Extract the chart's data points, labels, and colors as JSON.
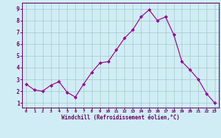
{
  "x": [
    0,
    1,
    2,
    3,
    4,
    5,
    6,
    7,
    8,
    9,
    10,
    11,
    12,
    13,
    14,
    15,
    16,
    17,
    18,
    19,
    20,
    21,
    22,
    23
  ],
  "y": [
    2.6,
    2.1,
    2.0,
    2.5,
    2.8,
    1.9,
    1.5,
    2.6,
    3.6,
    4.4,
    4.5,
    5.5,
    6.5,
    7.2,
    8.3,
    8.9,
    8.0,
    8.3,
    6.8,
    4.5,
    3.8,
    3.0,
    1.8,
    1.0
  ],
  "line_color": "#990099",
  "marker_color": "#990099",
  "bg_color": "#d0edf5",
  "grid_color": "#aacccc",
  "xlabel": "Windchill (Refroidissement éolien,°C)",
  "xlabel_color": "#660066",
  "tick_color": "#660066",
  "axis_line_color": "#660066",
  "ylim": [
    0.6,
    9.5
  ],
  "xlim": [
    -0.5,
    23.5
  ],
  "yticks": [
    1,
    2,
    3,
    4,
    5,
    6,
    7,
    8,
    9
  ],
  "xticks": [
    0,
    1,
    2,
    3,
    4,
    5,
    6,
    7,
    8,
    9,
    10,
    11,
    12,
    13,
    14,
    15,
    16,
    17,
    18,
    19,
    20,
    21,
    22,
    23
  ]
}
